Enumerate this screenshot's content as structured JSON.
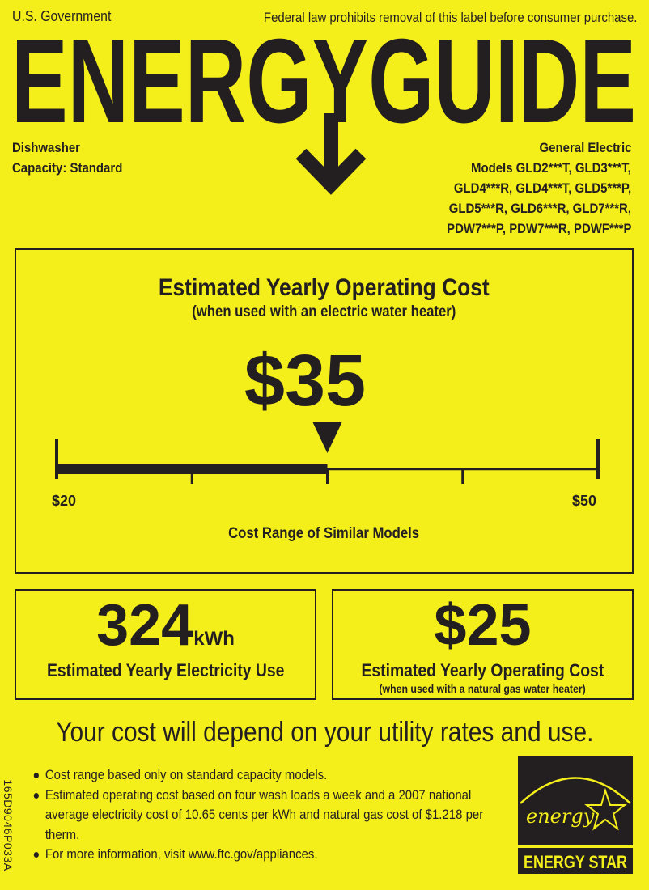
{
  "header": {
    "gov_label": "U.S. Government",
    "legal_notice": "Federal law prohibits removal of this label before consumer purchase.",
    "title": "ENERGYGUIDE"
  },
  "product": {
    "type": "Dishwasher",
    "capacity": "Capacity: Standard",
    "manufacturer": "General Electric",
    "model_lines": [
      "Models GLD2***T, GLD3***T,",
      "GLD4***R, GLD4***T, GLD5***P,",
      "GLD5***R, GLD6***R, GLD7***R,",
      "PDW7***P, PDW7***R, PDWF***P"
    ]
  },
  "cost_box": {
    "heading": "Estimated Yearly Operating Cost",
    "subheading": "(when used with an electric water heater)",
    "value": "$35",
    "value_number": 35,
    "range_min_label": "$20",
    "range_max_label": "$50",
    "range_min": 20,
    "range_max": 50,
    "range_caption": "Cost Range of Similar Models"
  },
  "electricity_box": {
    "value": "324",
    "unit": "kWh",
    "label": "Estimated Yearly Electricity Use"
  },
  "gas_box": {
    "value": "$25",
    "label": "Estimated Yearly Operating Cost",
    "sublabel": "(when used with a natural gas water heater)"
  },
  "footer": {
    "headline": "Your cost will depend on your utility rates and use.",
    "bullets": [
      "Cost range based only on standard capacity models.",
      "Estimated operating cost based on four wash loads a week and a 2007 national average electricity cost of 10.65 cents per kWh and natural gas cost of $1.218 per therm.",
      "For more information, visit www.ftc.gov/appliances."
    ],
    "label_code": "165D9046P033A",
    "energy_star_script": "energy",
    "energy_star_label": "ENERGY STAR"
  },
  "colors": {
    "background": "#f4ee1b",
    "ink": "#231f20"
  }
}
